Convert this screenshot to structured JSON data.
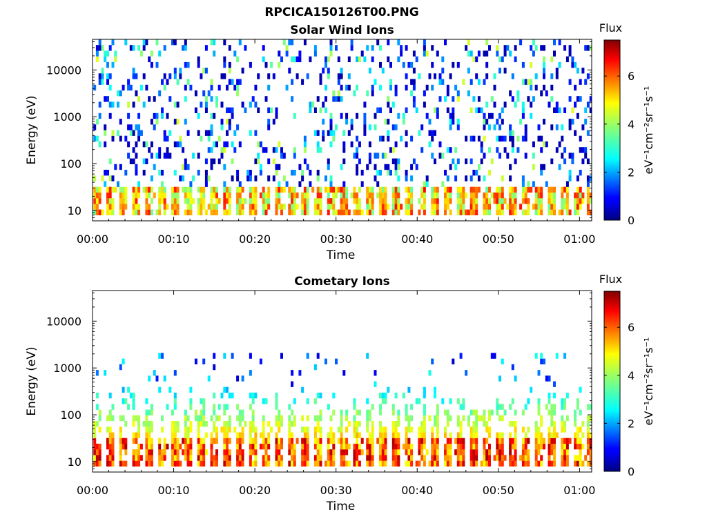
{
  "figure": {
    "title": "RPCICA150126T00.PNG"
  },
  "chart_data": [
    {
      "type": "heatmap",
      "title": "Solar Wind Ions",
      "xlabel": "Time",
      "ylabel": "Energy (eV)",
      "x_ticks": [
        "00:00",
        "00:10",
        "00:20",
        "00:30",
        "00:40",
        "00:50",
        "01:00"
      ],
      "x_tick_minutes": [
        0,
        10,
        20,
        30,
        40,
        50,
        60
      ],
      "xlim_minutes": [
        0,
        61.5
      ],
      "yscale": "log",
      "ylim": [
        6,
        45000
      ],
      "y_ticks": [
        "10",
        "100",
        "1000",
        "10000"
      ],
      "y_tick_values": [
        10,
        100,
        1000,
        10000
      ],
      "colorbar": {
        "label": "Flux",
        "unit": "eV⁻¹cm⁻²sr⁻¹s⁻¹",
        "ticks": [
          "0",
          "2",
          "4",
          "6"
        ],
        "tick_values": [
          0,
          2,
          4,
          6
        ],
        "clim": [
          0,
          7.5
        ],
        "colormap": "jet"
      },
      "grid": false,
      "features": {
        "low_energy_band": {
          "energy_range_eV": [
            7,
            30
          ],
          "flux_range": [
            3.5,
            6.5
          ]
        },
        "scattered_high_energy": {
          "energy_range_eV": [
            30,
            40000
          ],
          "flux_range": [
            0.3,
            4.5
          ]
        }
      }
    },
    {
      "type": "heatmap",
      "title": "Cometary Ions",
      "xlabel": "Time",
      "ylabel": "Energy (eV)",
      "x_ticks": [
        "00:00",
        "00:10",
        "00:20",
        "00:30",
        "00:40",
        "00:50",
        "01:00"
      ],
      "x_tick_minutes": [
        0,
        10,
        20,
        30,
        40,
        50,
        60
      ],
      "xlim_minutes": [
        0,
        61.5
      ],
      "yscale": "log",
      "ylim": [
        6,
        45000
      ],
      "y_ticks": [
        "10",
        "100",
        "1000",
        "10000"
      ],
      "y_tick_values": [
        10,
        100,
        1000,
        10000
      ],
      "colorbar": {
        "label": "Flux",
        "unit": "eV⁻¹cm⁻²sr⁻¹s⁻¹",
        "ticks": [
          "0",
          "2",
          "4",
          "6"
        ],
        "tick_values": [
          0,
          2,
          4,
          6
        ],
        "clim": [
          0,
          7.5
        ],
        "colormap": "jet"
      },
      "grid": false,
      "features": {
        "low_energy_band": {
          "energy_range_eV": [
            7,
            30
          ],
          "flux_range": [
            4.5,
            7.2
          ]
        },
        "mid_energy_plume": {
          "energy_range_eV": [
            30,
            400
          ],
          "flux_range": [
            2.5,
            5.0
          ]
        },
        "sparse_high_energy": {
          "energy_range_eV": [
            400,
            2000
          ],
          "flux_range": [
            0.5,
            3.0
          ]
        }
      }
    }
  ]
}
